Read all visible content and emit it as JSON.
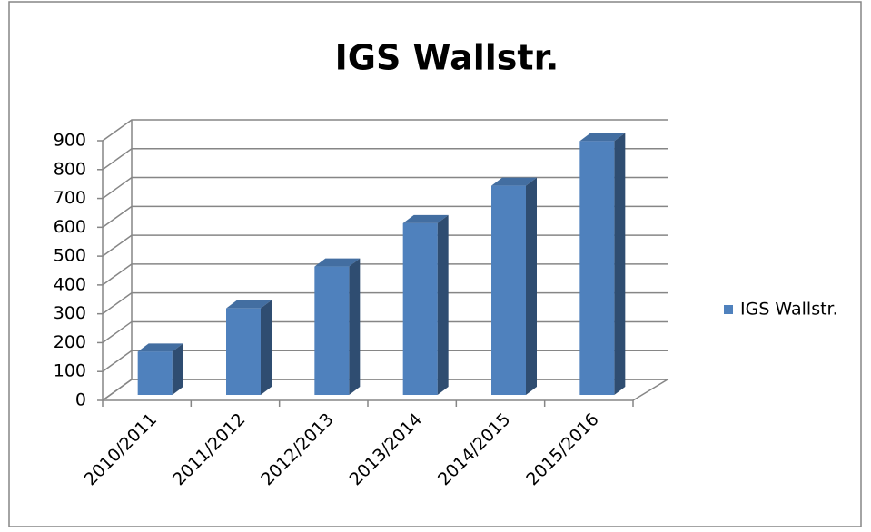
{
  "chart_data": {
    "type": "bar3d",
    "title": "IGS Wallstr.",
    "categories": [
      "2010/2011",
      "2011/2012",
      "2012/2013",
      "2013/2014",
      "2014/2015",
      "2015/2016"
    ],
    "series": [
      {
        "name": "IGS Wallstr.",
        "color": "#4f81bd",
        "values": [
          150,
          300,
          445,
          595,
          725,
          880
        ]
      }
    ],
    "ylim": [
      0,
      900
    ],
    "yticks": [
      0,
      100,
      200,
      300,
      400,
      500,
      600,
      700,
      800,
      900
    ],
    "grid": true,
    "legend": "right"
  }
}
